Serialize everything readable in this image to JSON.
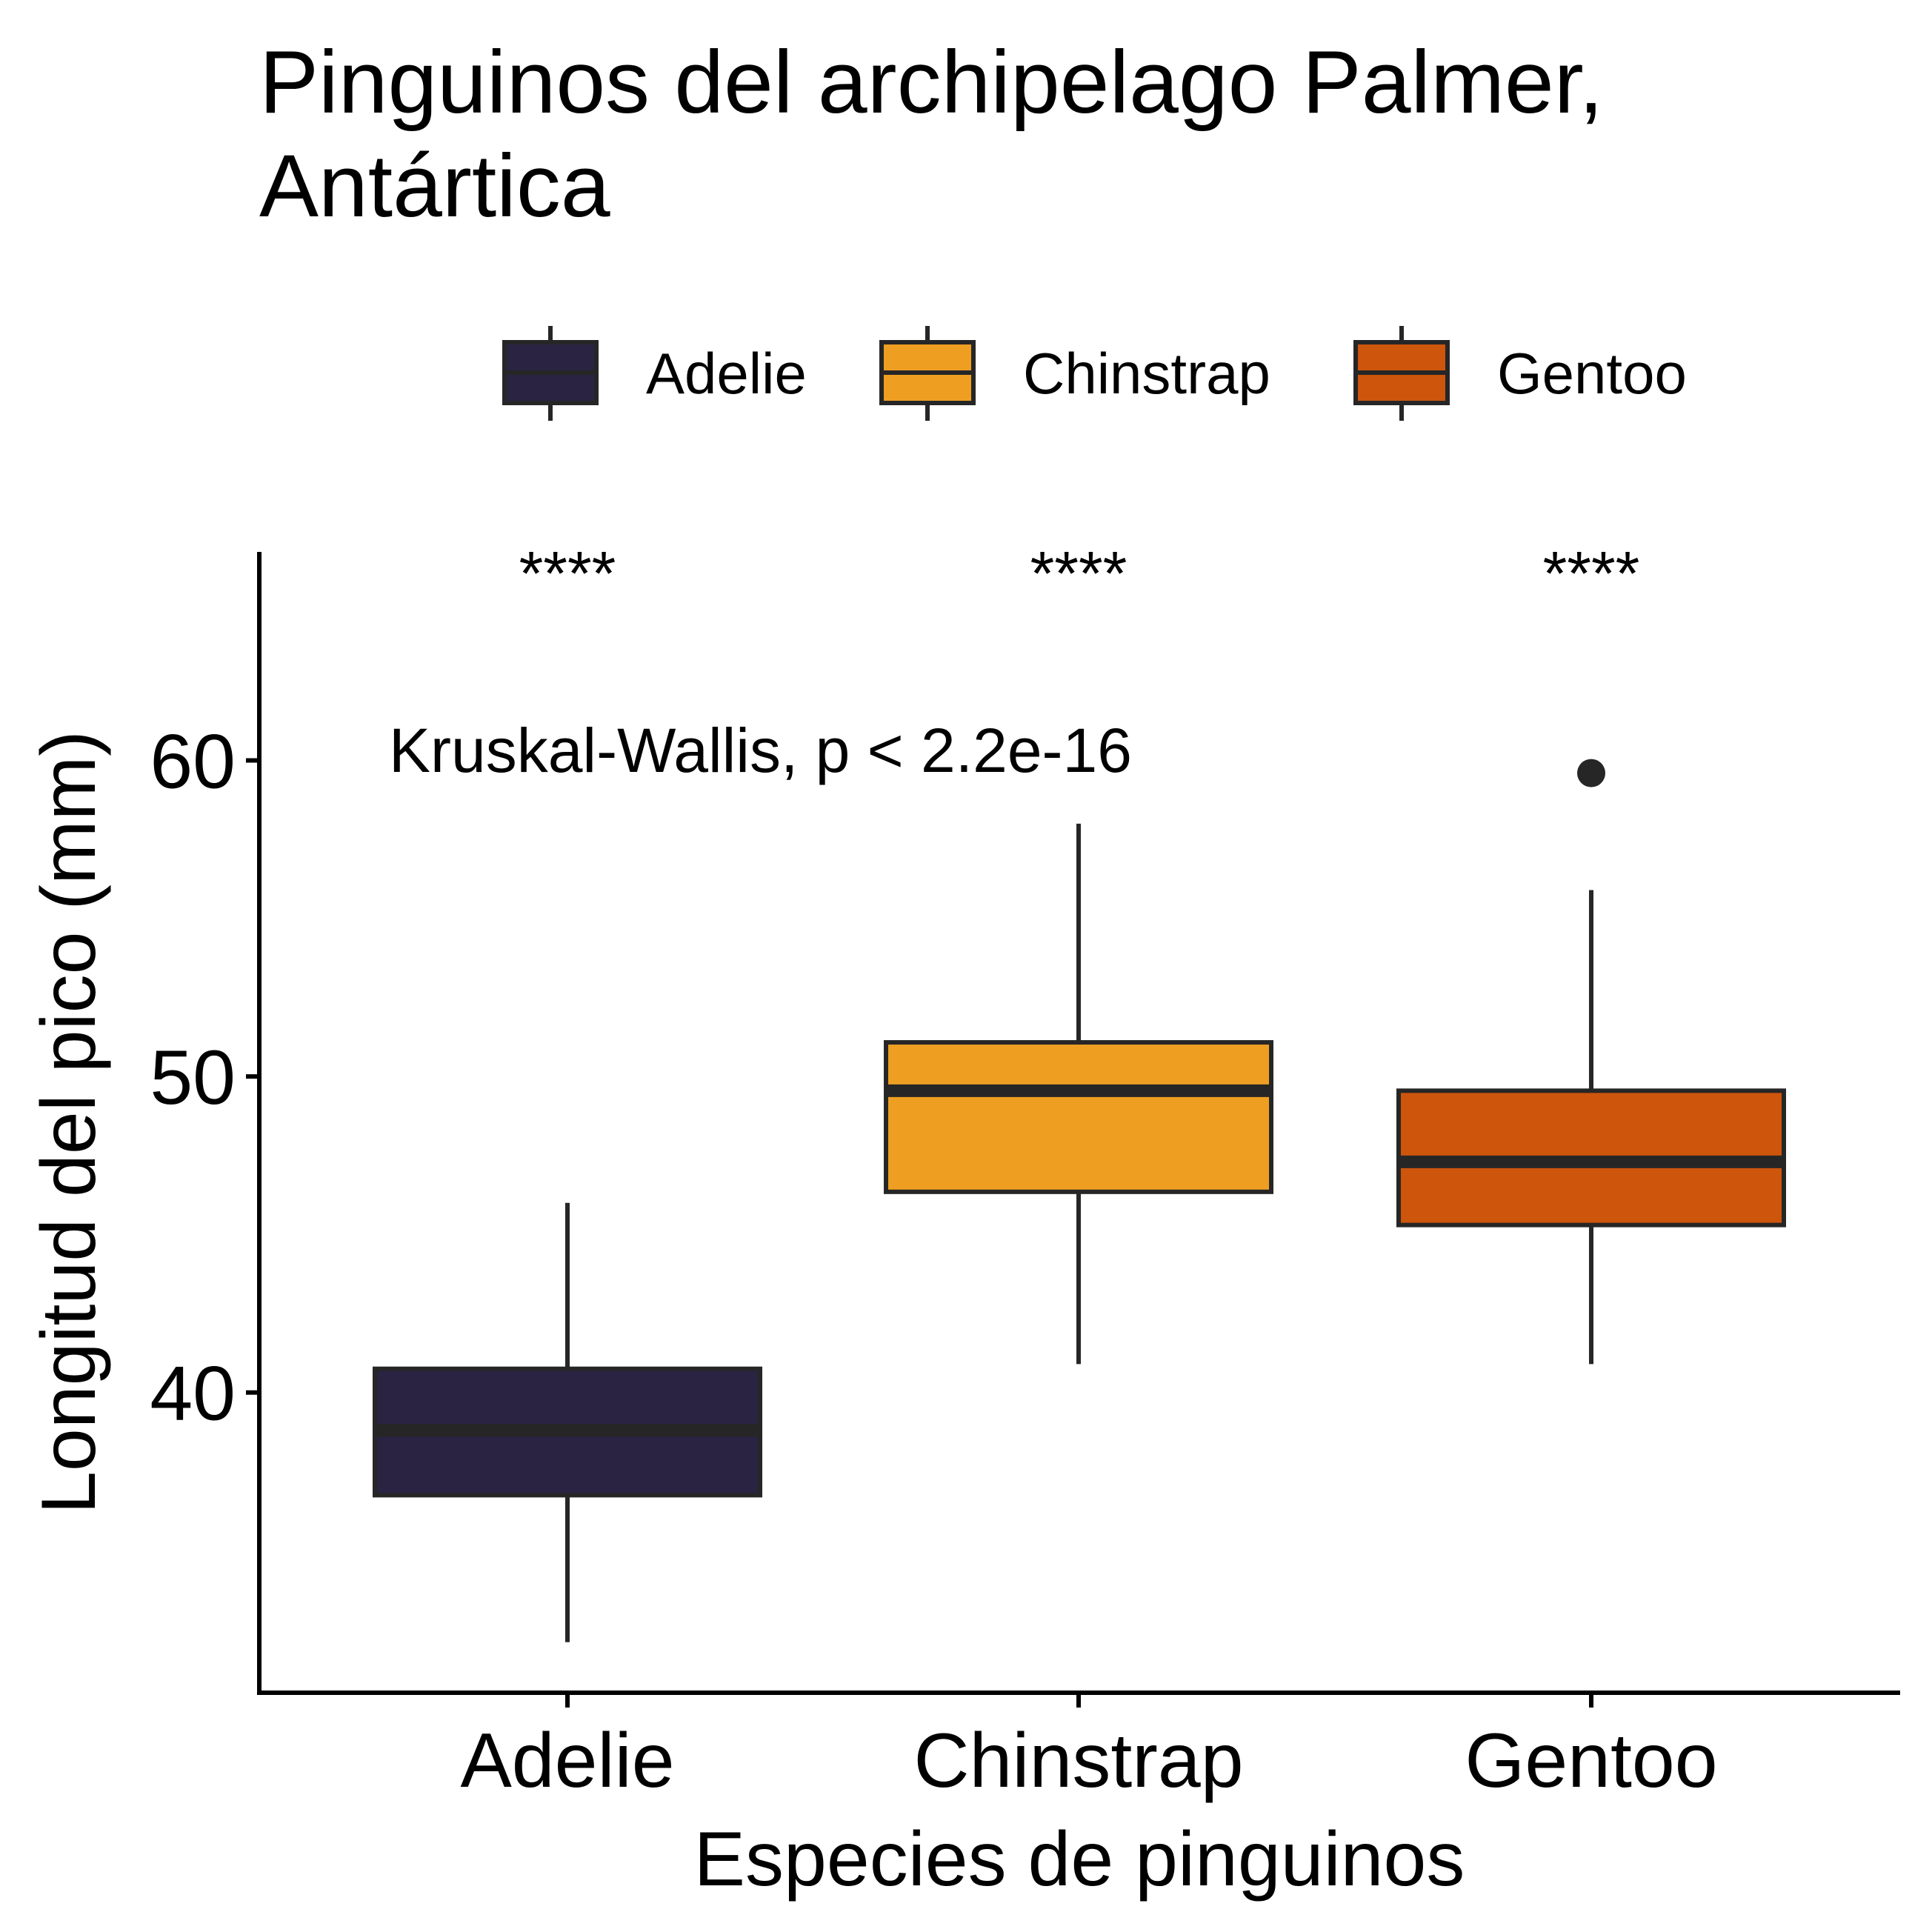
{
  "chart_data": {
    "type": "boxplot",
    "title_lines": [
      "Pinguinos del archipelago Palmer,",
      "Antártica"
    ],
    "xlabel": "Especies de pinguinos",
    "ylabel": "Longitud del pico (mm)",
    "ylim": [
      30.5,
      66.6
    ],
    "yticks": [
      40,
      50,
      60
    ],
    "grid": false,
    "legend_position": "top",
    "categories": [
      "Adelie",
      "Chinstrap",
      "Gentoo"
    ],
    "series": [
      {
        "name": "Adelie",
        "color": "#2a2442",
        "whisker_low": 32.1,
        "q1": 36.75,
        "median": 38.8,
        "q3": 40.75,
        "whisker_high": 46.0,
        "outliers": []
      },
      {
        "name": "Chinstrap",
        "color": "#ee9f22",
        "whisker_low": 40.9,
        "q1": 46.35,
        "median": 49.55,
        "q3": 51.08,
        "whisker_high": 58.0,
        "outliers": []
      },
      {
        "name": "Gentoo",
        "color": "#cd550c",
        "whisker_low": 40.9,
        "q1": 45.3,
        "median": 47.3,
        "q3": 49.55,
        "whisker_high": 55.9,
        "outliers": [
          59.6
        ]
      }
    ],
    "annotations": {
      "test_label": "Kruskal-Wallis, p < 2.2e-16",
      "significance": [
        "****",
        "****",
        "****"
      ]
    }
  }
}
